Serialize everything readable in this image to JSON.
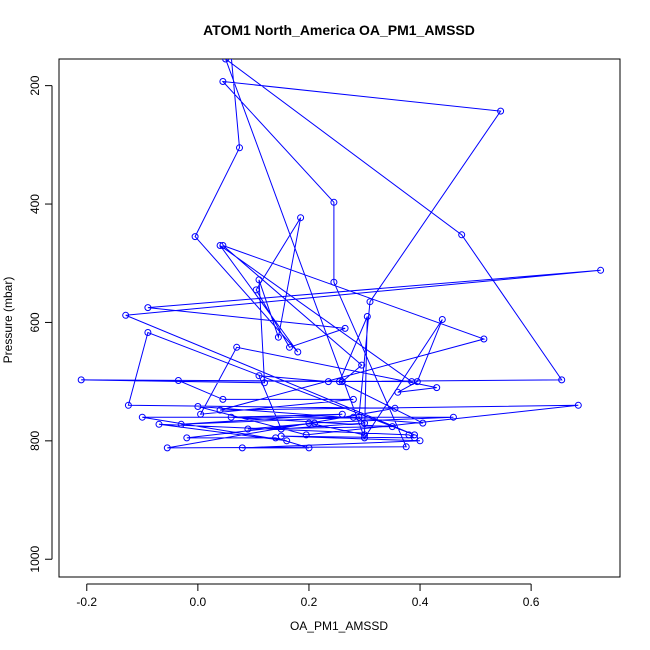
{
  "chart_data": {
    "type": "line",
    "title": "ATOM1 North_America OA_PM1_AMSSD",
    "xlabel": "OA_PM1_AMSSD",
    "ylabel": "Pressure (mbar)",
    "xlim": [
      -0.25,
      0.76
    ],
    "ylim": [
      1030,
      155
    ],
    "y_reversed": true,
    "x_ticks": [
      -0.2,
      0.0,
      0.2,
      0.4,
      0.6
    ],
    "x_tick_labels": [
      "-0.2",
      "0.0",
      "0.2",
      "0.4",
      "0.6"
    ],
    "y_ticks": [
      200,
      400,
      600,
      800,
      1000
    ],
    "y_tick_labels": [
      "200",
      "400",
      "600",
      "800",
      "1000"
    ],
    "grid": false,
    "legend": "none",
    "colors": {
      "series": "#0000ff",
      "axes": "#000000",
      "background": "#ffffff"
    },
    "series": [
      {
        "markers": "open-circle",
        "points": [
          {
            "x": 0.06,
            "y": 150
          },
          {
            "x": 0.075,
            "y": 305
          },
          {
            "x": -0.005,
            "y": 455
          },
          {
            "x": 0.18,
            "y": 650
          },
          {
            "x": 0.04,
            "y": 470
          },
          {
            "x": 0.385,
            "y": 700
          },
          {
            "x": -0.21,
            "y": 697
          },
          {
            "x": 0.12,
            "y": 702
          },
          {
            "x": 0.11,
            "y": 528
          },
          {
            "x": 0.145,
            "y": 625
          },
          {
            "x": 0.185,
            "y": 423
          },
          {
            "x": 0.105,
            "y": 545
          },
          {
            "x": 0.165,
            "y": 642
          },
          {
            "x": 0.265,
            "y": 610
          },
          {
            "x": -0.09,
            "y": 575
          },
          {
            "x": 0.725,
            "y": 512
          },
          {
            "x": -0.13,
            "y": 588
          },
          {
            "x": 0.39,
            "y": 790
          },
          {
            "x": -0.09,
            "y": 617
          },
          {
            "x": -0.125,
            "y": 740
          },
          {
            "x": 0.355,
            "y": 745
          },
          {
            "x": -0.055,
            "y": 812
          },
          {
            "x": 0.375,
            "y": 810
          },
          {
            "x": 0.245,
            "y": 532
          },
          {
            "x": 0.245,
            "y": 397
          },
          {
            "x": 0.045,
            "y": 193
          },
          {
            "x": 0.545,
            "y": 243
          },
          {
            "x": 0.31,
            "y": 565
          },
          {
            "x": 0.29,
            "y": 760
          },
          {
            "x": 0.3,
            "y": 770
          },
          {
            "x": 0.15,
            "y": 780
          },
          {
            "x": 0.11,
            "y": 690
          },
          {
            "x": 0.235,
            "y": 700
          },
          {
            "x": 0.655,
            "y": 697
          },
          {
            "x": 0.475,
            "y": 452
          },
          {
            "x": 0.05,
            "y": 155
          },
          {
            "x": 0.3,
            "y": 795
          },
          {
            "x": 0.44,
            "y": 595
          },
          {
            "x": 0.395,
            "y": 700
          },
          {
            "x": 0.36,
            "y": 718
          },
          {
            "x": 0.43,
            "y": 710
          },
          {
            "x": 0.07,
            "y": 642
          },
          {
            "x": 0.005,
            "y": 755
          },
          {
            "x": 0.28,
            "y": 730
          },
          {
            "x": 0.045,
            "y": 730
          },
          {
            "x": -0.035,
            "y": 698
          },
          {
            "x": 0.26,
            "y": 700
          },
          {
            "x": 0.295,
            "y": 672
          },
          {
            "x": 0.045,
            "y": 470
          },
          {
            "x": 0.515,
            "y": 628
          },
          {
            "x": 0.04,
            "y": 748
          },
          {
            "x": 0.685,
            "y": 740
          },
          {
            "x": 0.195,
            "y": 790
          },
          {
            "x": 0.0,
            "y": 742
          },
          {
            "x": 0.405,
            "y": 770
          },
          {
            "x": 0.255,
            "y": 700
          },
          {
            "x": 0.305,
            "y": 590
          },
          {
            "x": 0.3,
            "y": 790
          },
          {
            "x": 0.2,
            "y": 770
          },
          {
            "x": 0.46,
            "y": 760
          },
          {
            "x": -0.1,
            "y": 760
          },
          {
            "x": 0.16,
            "y": 800
          },
          {
            "x": -0.07,
            "y": 772
          },
          {
            "x": 0.38,
            "y": 790
          },
          {
            "x": 0.39,
            "y": 795
          },
          {
            "x": 0.15,
            "y": 792
          },
          {
            "x": 0.4,
            "y": 800
          },
          {
            "x": 0.08,
            "y": 812
          },
          {
            "x": 0.2,
            "y": 812
          },
          {
            "x": 0.14,
            "y": 795
          },
          {
            "x": -0.02,
            "y": 795
          },
          {
            "x": 0.21,
            "y": 770
          },
          {
            "x": 0.09,
            "y": 780
          },
          {
            "x": 0.35,
            "y": 776
          },
          {
            "x": 0.06,
            "y": 760
          },
          {
            "x": 0.26,
            "y": 755
          },
          {
            "x": -0.03,
            "y": 772
          },
          {
            "x": 0.28,
            "y": 760
          }
        ]
      }
    ]
  }
}
